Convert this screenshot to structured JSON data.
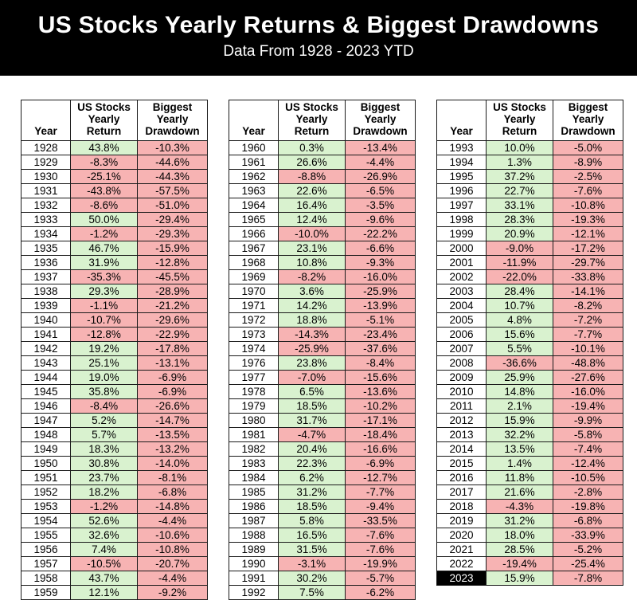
{
  "banner": {
    "title": "US Stocks Yearly Returns & Biggest Drawdowns",
    "subtitle": "Data From 1928 - 2023 YTD"
  },
  "colors": {
    "banner_bg": "#000000",
    "banner_text": "#ffffff",
    "positive_bg": "#d9f2cf",
    "negative_bg": "#f7b3b3",
    "highlight_bg": "#000000",
    "highlight_text": "#ffffff",
    "border": "#1a1a1a"
  },
  "highlighted_year": "2023",
  "chart_data": {
    "type": "table",
    "title": "US Stocks Yearly Returns & Biggest Drawdowns",
    "subtitle": "Data From 1928 - 2023 YTD",
    "columns": [
      "Year",
      "US Stocks Yearly Return",
      "Biggest Yearly Drawdown"
    ],
    "tables": [
      {
        "rows": [
          [
            "1928",
            "43.8%",
            "-10.3%"
          ],
          [
            "1929",
            "-8.3%",
            "-44.6%"
          ],
          [
            "1930",
            "-25.1%",
            "-44.3%"
          ],
          [
            "1931",
            "-43.8%",
            "-57.5%"
          ],
          [
            "1932",
            "-8.6%",
            "-51.0%"
          ],
          [
            "1933",
            "50.0%",
            "-29.4%"
          ],
          [
            "1934",
            "-1.2%",
            "-29.3%"
          ],
          [
            "1935",
            "46.7%",
            "-15.9%"
          ],
          [
            "1936",
            "31.9%",
            "-12.8%"
          ],
          [
            "1937",
            "-35.3%",
            "-45.5%"
          ],
          [
            "1938",
            "29.3%",
            "-28.9%"
          ],
          [
            "1939",
            "-1.1%",
            "-21.2%"
          ],
          [
            "1940",
            "-10.7%",
            "-29.6%"
          ],
          [
            "1941",
            "-12.8%",
            "-22.9%"
          ],
          [
            "1942",
            "19.2%",
            "-17.8%"
          ],
          [
            "1943",
            "25.1%",
            "-13.1%"
          ],
          [
            "1944",
            "19.0%",
            "-6.9%"
          ],
          [
            "1945",
            "35.8%",
            "-6.9%"
          ],
          [
            "1946",
            "-8.4%",
            "-26.6%"
          ],
          [
            "1947",
            "5.2%",
            "-14.7%"
          ],
          [
            "1948",
            "5.7%",
            "-13.5%"
          ],
          [
            "1949",
            "18.3%",
            "-13.2%"
          ],
          [
            "1950",
            "30.8%",
            "-14.0%"
          ],
          [
            "1951",
            "23.7%",
            "-8.1%"
          ],
          [
            "1952",
            "18.2%",
            "-6.8%"
          ],
          [
            "1953",
            "-1.2%",
            "-14.8%"
          ],
          [
            "1954",
            "52.6%",
            "-4.4%"
          ],
          [
            "1955",
            "32.6%",
            "-10.6%"
          ],
          [
            "1956",
            "7.4%",
            "-10.8%"
          ],
          [
            "1957",
            "-10.5%",
            "-20.7%"
          ],
          [
            "1958",
            "43.7%",
            "-4.4%"
          ],
          [
            "1959",
            "12.1%",
            "-9.2%"
          ]
        ]
      },
      {
        "rows": [
          [
            "1960",
            "0.3%",
            "-13.4%"
          ],
          [
            "1961",
            "26.6%",
            "-4.4%"
          ],
          [
            "1962",
            "-8.8%",
            "-26.9%"
          ],
          [
            "1963",
            "22.6%",
            "-6.5%"
          ],
          [
            "1964",
            "16.4%",
            "-3.5%"
          ],
          [
            "1965",
            "12.4%",
            "-9.6%"
          ],
          [
            "1966",
            "-10.0%",
            "-22.2%"
          ],
          [
            "1967",
            "23.1%",
            "-6.6%"
          ],
          [
            "1968",
            "10.8%",
            "-9.3%"
          ],
          [
            "1969",
            "-8.2%",
            "-16.0%"
          ],
          [
            "1970",
            "3.6%",
            "-25.9%"
          ],
          [
            "1971",
            "14.2%",
            "-13.9%"
          ],
          [
            "1972",
            "18.8%",
            "-5.1%"
          ],
          [
            "1973",
            "-14.3%",
            "-23.4%"
          ],
          [
            "1974",
            "-25.9%",
            "-37.6%"
          ],
          [
            "1976",
            "23.8%",
            "-8.4%"
          ],
          [
            "1977",
            "-7.0%",
            "-15.6%"
          ],
          [
            "1978",
            "6.5%",
            "-13.6%"
          ],
          [
            "1979",
            "18.5%",
            "-10.2%"
          ],
          [
            "1980",
            "31.7%",
            "-17.1%"
          ],
          [
            "1981",
            "-4.7%",
            "-18.4%"
          ],
          [
            "1982",
            "20.4%",
            "-16.6%"
          ],
          [
            "1983",
            "22.3%",
            "-6.9%"
          ],
          [
            "1984",
            "6.2%",
            "-12.7%"
          ],
          [
            "1985",
            "31.2%",
            "-7.7%"
          ],
          [
            "1986",
            "18.5%",
            "-9.4%"
          ],
          [
            "1987",
            "5.8%",
            "-33.5%"
          ],
          [
            "1988",
            "16.5%",
            "-7.6%"
          ],
          [
            "1989",
            "31.5%",
            "-7.6%"
          ],
          [
            "1990",
            "-3.1%",
            "-19.9%"
          ],
          [
            "1991",
            "30.2%",
            "-5.7%"
          ],
          [
            "1992",
            "7.5%",
            "-6.2%"
          ]
        ]
      },
      {
        "rows": [
          [
            "1993",
            "10.0%",
            "-5.0%"
          ],
          [
            "1994",
            "1.3%",
            "-8.9%"
          ],
          [
            "1995",
            "37.2%",
            "-2.5%"
          ],
          [
            "1996",
            "22.7%",
            "-7.6%"
          ],
          [
            "1997",
            "33.1%",
            "-10.8%"
          ],
          [
            "1998",
            "28.3%",
            "-19.3%"
          ],
          [
            "1999",
            "20.9%",
            "-12.1%"
          ],
          [
            "2000",
            "-9.0%",
            "-17.2%"
          ],
          [
            "2001",
            "-11.9%",
            "-29.7%"
          ],
          [
            "2002",
            "-22.0%",
            "-33.8%"
          ],
          [
            "2003",
            "28.4%",
            "-14.1%"
          ],
          [
            "2004",
            "10.7%",
            "-8.2%"
          ],
          [
            "2005",
            "4.8%",
            "-7.2%"
          ],
          [
            "2006",
            "15.6%",
            "-7.7%"
          ],
          [
            "2007",
            "5.5%",
            "-10.1%"
          ],
          [
            "2008",
            "-36.6%",
            "-48.8%"
          ],
          [
            "2009",
            "25.9%",
            "-27.6%"
          ],
          [
            "2010",
            "14.8%",
            "-16.0%"
          ],
          [
            "2011",
            "2.1%",
            "-19.4%"
          ],
          [
            "2012",
            "15.9%",
            "-9.9%"
          ],
          [
            "2013",
            "32.2%",
            "-5.8%"
          ],
          [
            "2014",
            "13.5%",
            "-7.4%"
          ],
          [
            "2015",
            "1.4%",
            "-12.4%"
          ],
          [
            "2016",
            "11.8%",
            "-10.5%"
          ],
          [
            "2017",
            "21.6%",
            "-2.8%"
          ],
          [
            "2018",
            "-4.3%",
            "-19.8%"
          ],
          [
            "2019",
            "31.2%",
            "-6.8%"
          ],
          [
            "2020",
            "18.0%",
            "-33.9%"
          ],
          [
            "2021",
            "28.5%",
            "-5.2%"
          ],
          [
            "2022",
            "-19.4%",
            "-25.4%"
          ],
          [
            "2023",
            "15.9%",
            "-7.8%"
          ]
        ]
      }
    ]
  }
}
